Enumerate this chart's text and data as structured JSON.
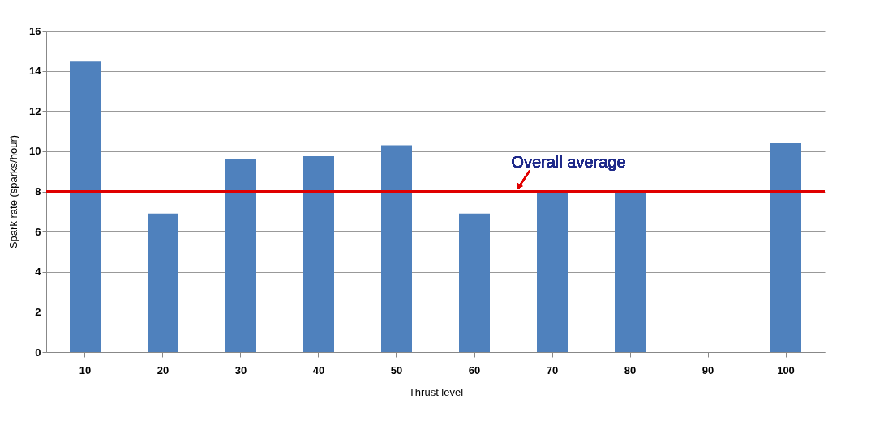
{
  "chart_data": {
    "type": "bar",
    "xlabel": "Thrust level",
    "ylabel": "Spark rate (sparks/hour)",
    "categories": [
      "10",
      "20",
      "30",
      "40",
      "50",
      "60",
      "70",
      "80",
      "90",
      "100"
    ],
    "values": [
      14.5,
      6.9,
      9.6,
      9.75,
      10.3,
      6.9,
      8.0,
      8.0,
      null,
      10.4
    ],
    "color": "#4f81bd",
    "ylim": [
      0,
      16
    ],
    "yticks": [
      0,
      2,
      4,
      6,
      8,
      10,
      12,
      14,
      16
    ],
    "grid": "y",
    "ref_lines": [
      {
        "axis": "y",
        "value": 8,
        "label": "Overall average",
        "color": "#e00000"
      }
    ]
  }
}
